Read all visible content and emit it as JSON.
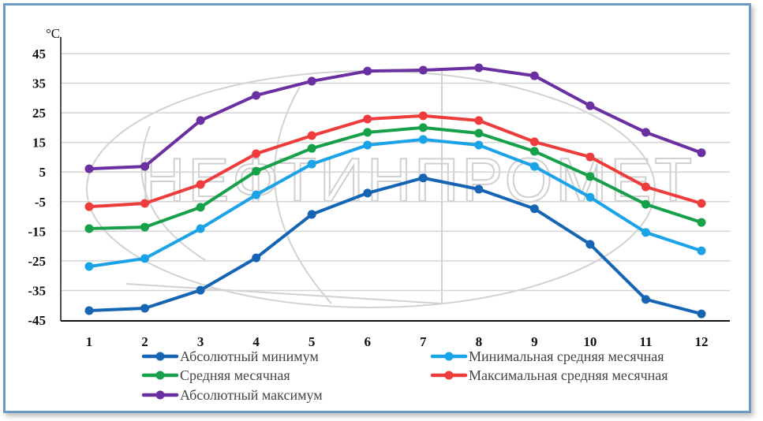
{
  "chart_data": {
    "type": "line",
    "title": "",
    "unit_label": "°C",
    "xlabel": "",
    "ylabel": "°C",
    "x": [
      1,
      2,
      3,
      4,
      5,
      6,
      7,
      8,
      9,
      10,
      11,
      12
    ],
    "x_tick_labels": [
      "1",
      "2",
      "3",
      "4",
      "5",
      "6",
      "7",
      "8",
      "9",
      "10",
      "11",
      "12"
    ],
    "ylim": [
      -45,
      45
    ],
    "y_ticks": [
      45,
      35,
      25,
      15,
      5,
      -5,
      -15,
      -25,
      -35,
      -45
    ],
    "y_tick_labels": [
      "45",
      "35",
      "25",
      "15",
      "5",
      "-5",
      "-15",
      "-25",
      "-35",
      "-45"
    ],
    "grid": true,
    "legend_position": "bottom",
    "watermark": "НЕФТИНПРОМЕТ",
    "series": [
      {
        "name": "Абсолютный минимум",
        "color": "#1565b4",
        "values": [
          -41.8,
          -41.0,
          -34.9,
          -24.0,
          -9.3,
          -2.1,
          3.0,
          -0.8,
          -7.4,
          -19.4,
          -38.0,
          -42.9
        ]
      },
      {
        "name": "Минимальная средняя месячная",
        "color": "#1aa3e6",
        "values": [
          -26.9,
          -24.2,
          -14.1,
          -2.7,
          7.7,
          14.1,
          16.0,
          14.1,
          6.9,
          -3.5,
          -15.4,
          -21.6
        ]
      },
      {
        "name": "Средняя месячная",
        "color": "#17a04a",
        "values": [
          -14.1,
          -13.6,
          -6.9,
          5.3,
          13.0,
          18.4,
          20.0,
          18.1,
          12.0,
          3.5,
          -5.9,
          -12.0
        ]
      },
      {
        "name": "Максимальная средняя месячная",
        "color": "#ee3b3b",
        "values": [
          -6.7,
          -5.6,
          0.8,
          11.2,
          17.3,
          22.9,
          24.0,
          22.4,
          15.2,
          10.1,
          0.0,
          -5.6
        ]
      },
      {
        "name": "Абсолютный максимум",
        "color": "#6a2fa0",
        "values": [
          6.1,
          6.9,
          22.4,
          30.9,
          35.7,
          39.1,
          39.4,
          40.2,
          37.5,
          27.4,
          18.4,
          11.5
        ]
      }
    ]
  }
}
